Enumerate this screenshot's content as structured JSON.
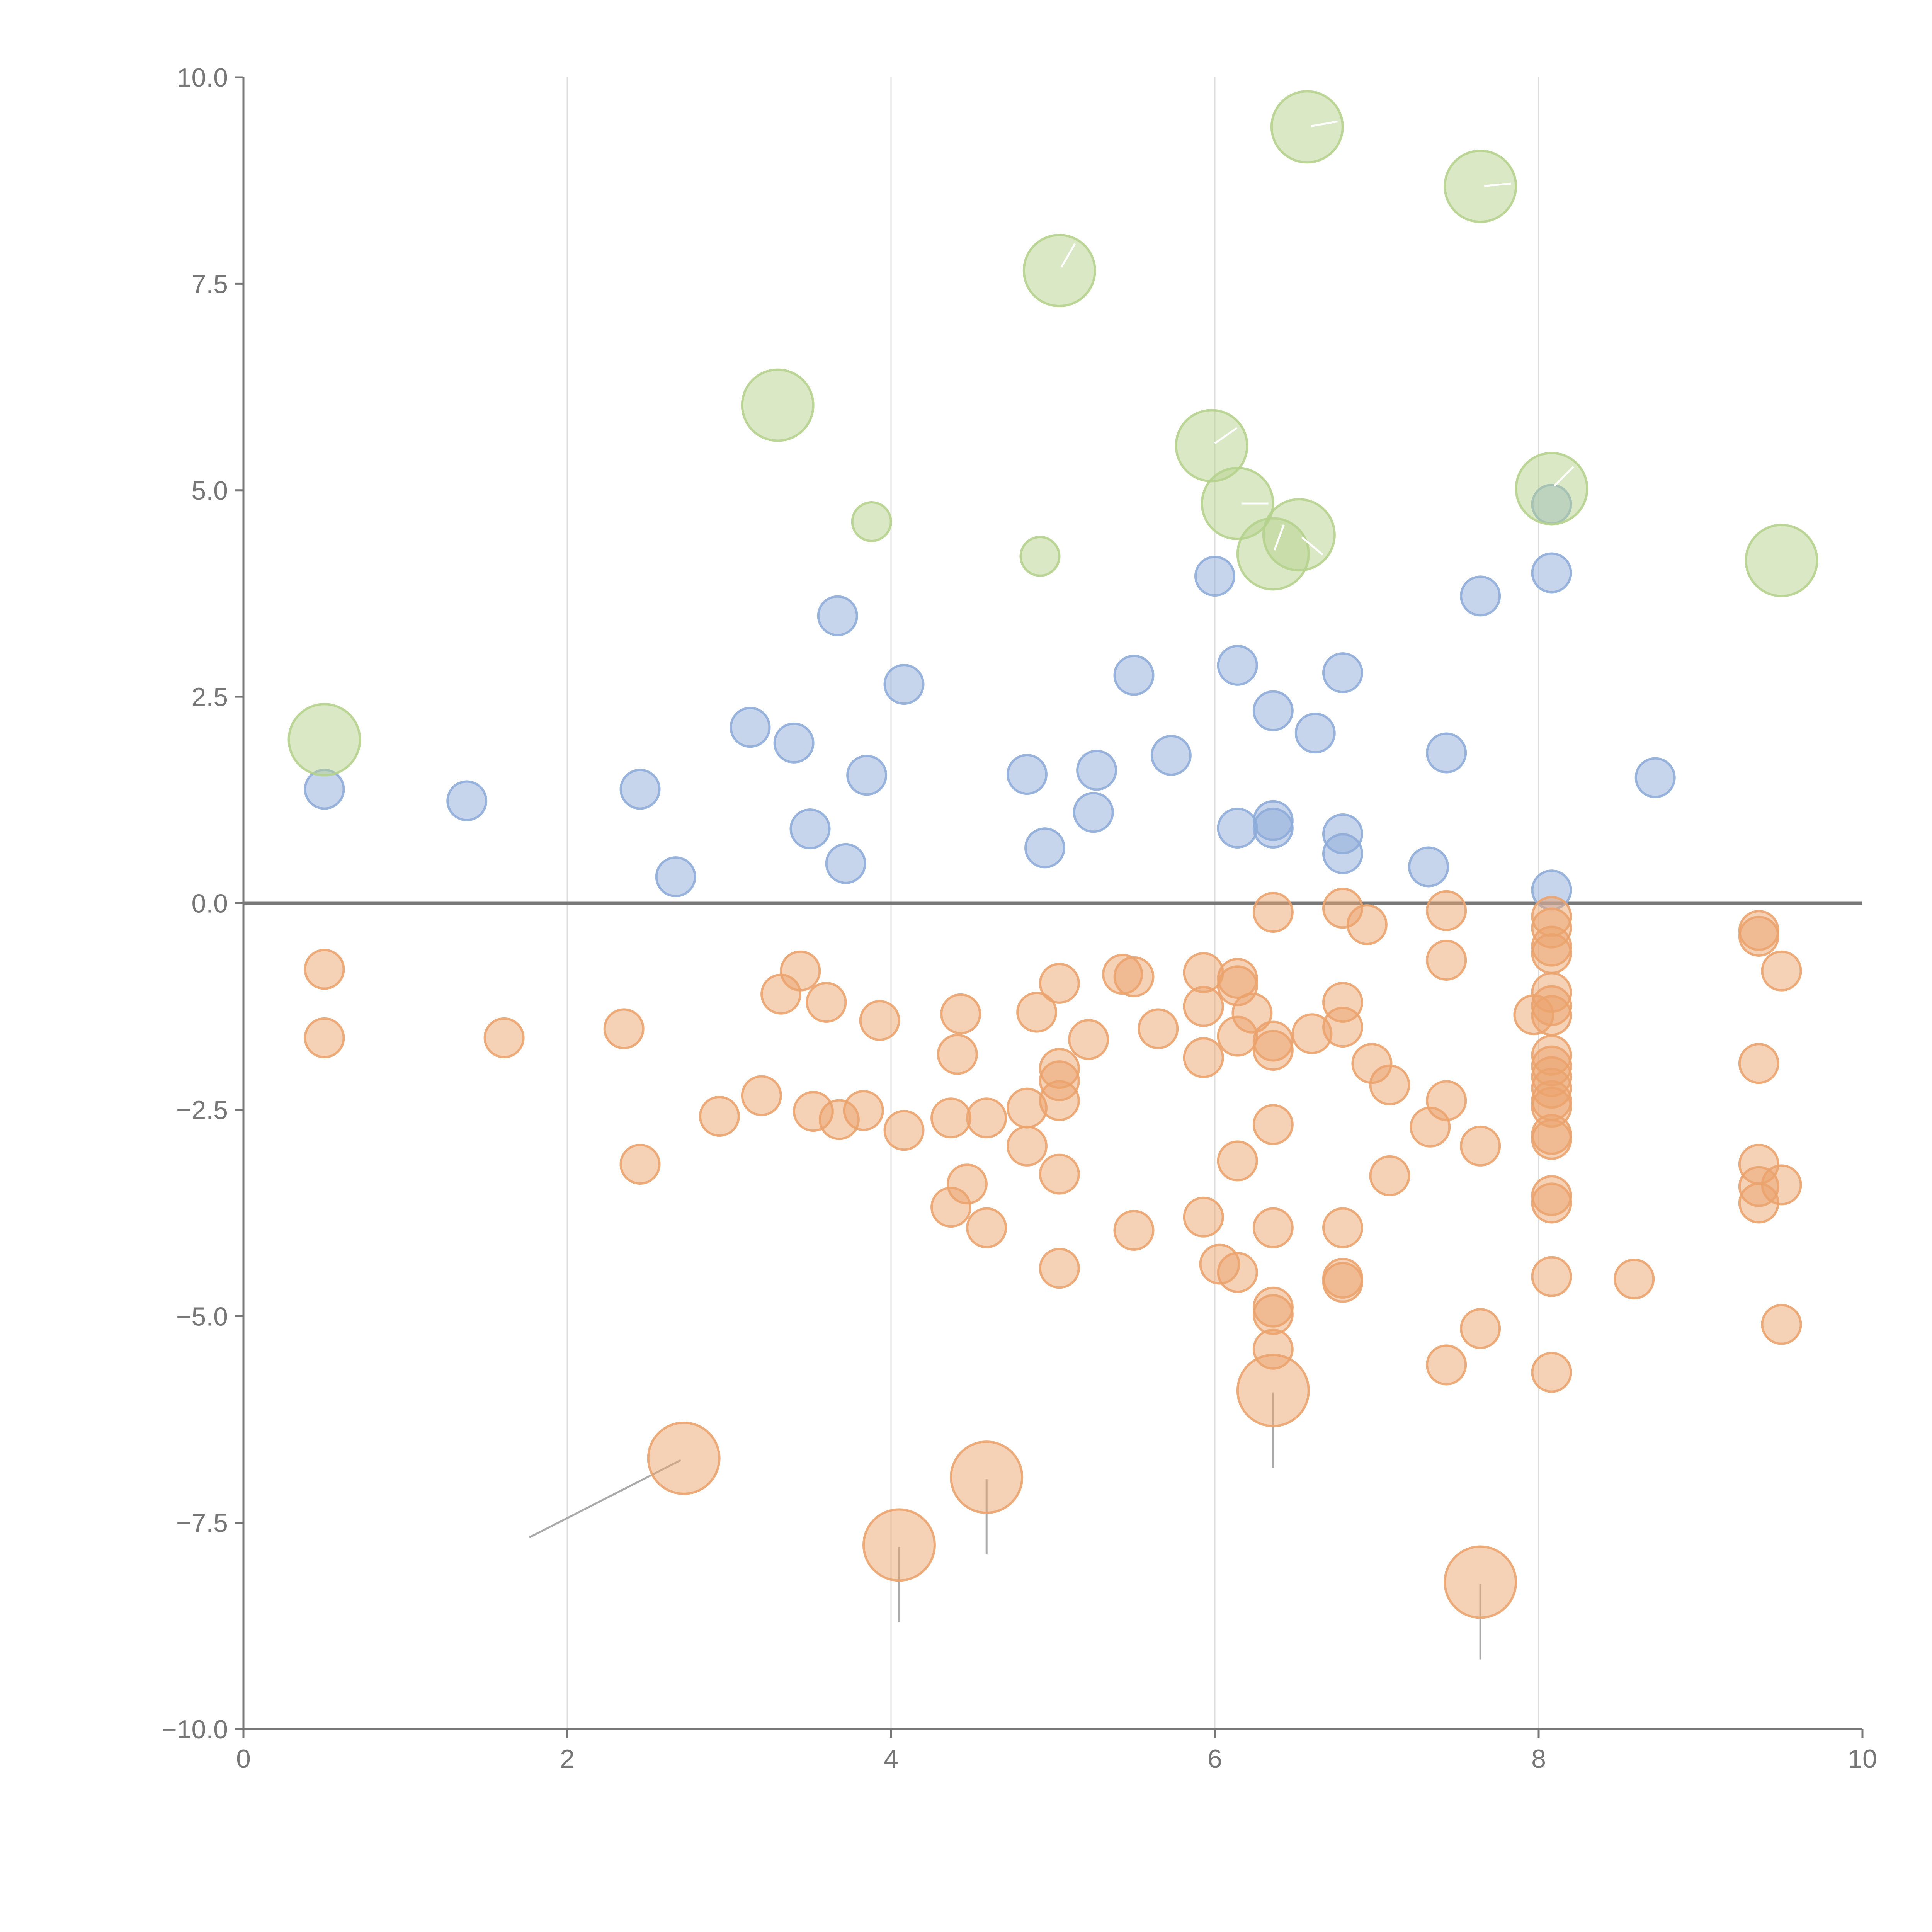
{
  "chart_data": {
    "type": "scatter",
    "title": "",
    "xlabel": "",
    "ylabel": "",
    "xlim": [
      0,
      10
    ],
    "ylim": [
      -10,
      10
    ],
    "grid": "vertical",
    "x_ticks": [
      "0",
      "2",
      "4",
      "6",
      "8",
      "10"
    ],
    "y_ticks": [
      "−10.0",
      "−7.5",
      "−5.0",
      "−2.5",
      "0.0",
      "2.5",
      "5.0",
      "7.5",
      "10.0"
    ],
    "colors": {
      "green": "#b5d28d",
      "blue": "#8eacd9",
      "orange": "#eba36e",
      "axis": "#777777",
      "grid": "#dddddd"
    },
    "series": [
      {
        "name": "blue",
        "color": "#8eacd9",
        "size": "small",
        "points": [
          [
            0.5,
            1.38
          ],
          [
            1.38,
            1.24
          ],
          [
            2.45,
            1.38
          ],
          [
            2.67,
            0.32
          ],
          [
            3.13,
            2.13
          ],
          [
            3.4,
            1.94
          ],
          [
            3.5,
            0.9
          ],
          [
            3.67,
            3.48
          ],
          [
            3.72,
            0.48
          ],
          [
            3.85,
            1.55
          ],
          [
            4.08,
            2.65
          ],
          [
            4.84,
            1.56
          ],
          [
            4.95,
            0.67
          ],
          [
            5.25,
            1.1
          ],
          [
            5.27,
            1.61
          ],
          [
            5.5,
            2.76
          ],
          [
            5.73,
            1.79
          ],
          [
            6.0,
            3.96
          ],
          [
            6.14,
            2.88
          ],
          [
            6.14,
            0.91
          ],
          [
            6.36,
            2.33
          ],
          [
            6.36,
            1.0
          ],
          [
            6.36,
            0.91
          ],
          [
            6.62,
            2.06
          ],
          [
            6.79,
            2.79
          ],
          [
            6.79,
            0.84
          ],
          [
            6.79,
            0.6
          ],
          [
            7.32,
            0.44
          ],
          [
            7.43,
            1.82
          ],
          [
            7.64,
            3.72
          ],
          [
            8.08,
            4.83
          ],
          [
            8.08,
            4.0
          ],
          [
            8.08,
            0.16
          ],
          [
            8.72,
            1.52
          ]
        ]
      },
      {
        "name": "orange",
        "color": "#eba36e",
        "size": "small",
        "points": [
          [
            0.5,
            -0.8
          ],
          [
            0.5,
            -1.63
          ],
          [
            1.61,
            -1.63
          ],
          [
            2.35,
            -1.52
          ],
          [
            2.45,
            -3.16
          ],
          [
            2.94,
            -2.58
          ],
          [
            3.2,
            -2.33
          ],
          [
            3.32,
            -1.1
          ],
          [
            3.44,
            -0.82
          ],
          [
            3.52,
            -2.52
          ],
          [
            3.6,
            -1.2
          ],
          [
            3.68,
            -2.62
          ],
          [
            3.83,
            -2.51
          ],
          [
            3.93,
            -1.42
          ],
          [
            4.08,
            -2.75
          ],
          [
            4.37,
            -2.6
          ],
          [
            4.37,
            -3.68
          ],
          [
            4.41,
            -1.83
          ],
          [
            4.43,
            -1.34
          ],
          [
            4.47,
            -3.4
          ],
          [
            4.59,
            -2.6
          ],
          [
            4.59,
            -3.93
          ],
          [
            4.84,
            -2.48
          ],
          [
            4.84,
            -2.94
          ],
          [
            4.9,
            -1.32
          ],
          [
            5.04,
            -2.0
          ],
          [
            5.04,
            -2.15
          ],
          [
            5.04,
            -2.39
          ],
          [
            5.04,
            -0.97
          ],
          [
            5.04,
            -3.28
          ],
          [
            5.04,
            -4.42
          ],
          [
            5.22,
            -1.65
          ],
          [
            5.43,
            -0.86
          ],
          [
            5.5,
            -0.89
          ],
          [
            5.5,
            -3.96
          ],
          [
            5.65,
            -1.52
          ],
          [
            5.93,
            -0.84
          ],
          [
            5.93,
            -1.25
          ],
          [
            5.93,
            -1.87
          ],
          [
            5.93,
            -3.8
          ],
          [
            6.03,
            -4.37
          ],
          [
            6.14,
            -0.91
          ],
          [
            6.14,
            -1.0
          ],
          [
            6.14,
            -1.61
          ],
          [
            6.14,
            -3.12
          ],
          [
            6.14,
            -4.47
          ],
          [
            6.23,
            -1.33
          ],
          [
            6.36,
            -0.11
          ],
          [
            6.36,
            -1.67
          ],
          [
            6.36,
            -1.78
          ],
          [
            6.36,
            -2.68
          ],
          [
            6.36,
            -3.93
          ],
          [
            6.36,
            -4.89
          ],
          [
            6.36,
            -4.98
          ],
          [
            6.36,
            -5.4
          ],
          [
            6.6,
            -1.58
          ],
          [
            6.79,
            -0.06
          ],
          [
            6.79,
            -1.2
          ],
          [
            6.79,
            -1.5
          ],
          [
            6.79,
            -3.93
          ],
          [
            6.79,
            -4.54
          ],
          [
            6.79,
            -4.59
          ],
          [
            6.94,
            -0.26
          ],
          [
            6.97,
            -1.94
          ],
          [
            7.08,
            -2.2
          ],
          [
            7.08,
            -3.3
          ],
          [
            7.33,
            -2.71
          ],
          [
            7.43,
            -0.09
          ],
          [
            7.43,
            -0.69
          ],
          [
            7.43,
            -2.39
          ],
          [
            7.43,
            -5.59
          ],
          [
            7.64,
            -2.94
          ],
          [
            7.64,
            -5.15
          ],
          [
            7.97,
            -1.35
          ],
          [
            8.08,
            -0.16
          ],
          [
            8.08,
            -0.3
          ],
          [
            8.08,
            -0.52
          ],
          [
            8.08,
            -0.61
          ],
          [
            8.08,
            -1.08
          ],
          [
            8.08,
            -1.24
          ],
          [
            8.08,
            -1.36
          ],
          [
            8.08,
            -1.84
          ],
          [
            8.08,
            -1.97
          ],
          [
            8.08,
            -2.1
          ],
          [
            8.08,
            -2.24
          ],
          [
            8.08,
            -2.39
          ],
          [
            8.08,
            -2.47
          ],
          [
            8.08,
            -2.8
          ],
          [
            8.08,
            -2.86
          ],
          [
            8.08,
            -3.54
          ],
          [
            8.08,
            -3.63
          ],
          [
            8.08,
            -4.52
          ],
          [
            8.08,
            -5.68
          ],
          [
            8.59,
            -4.55
          ],
          [
            9.36,
            -0.33
          ],
          [
            9.36,
            -0.4
          ],
          [
            9.36,
            -1.94
          ],
          [
            9.36,
            -3.16
          ],
          [
            9.36,
            -3.43
          ],
          [
            9.36,
            -3.63
          ],
          [
            9.5,
            -0.82
          ],
          [
            9.5,
            -3.41
          ],
          [
            9.5,
            -5.1
          ]
        ]
      },
      {
        "name": "orange-large",
        "color": "#eba36e",
        "size": "large",
        "points": [
          [
            2.72,
            -6.72
          ],
          [
            4.05,
            -7.77
          ],
          [
            4.59,
            -6.95
          ],
          [
            6.36,
            -5.9
          ],
          [
            7.64,
            -8.22
          ]
        ]
      },
      {
        "name": "green",
        "color": "#b5d28d",
        "size": "large",
        "points": [
          [
            0.5,
            1.98
          ],
          [
            3.3,
            6.03
          ],
          [
            5.04,
            7.66
          ],
          [
            5.98,
            5.54
          ],
          [
            6.14,
            4.84
          ],
          [
            6.36,
            4.23
          ],
          [
            6.52,
            4.46
          ],
          [
            6.57,
            9.4
          ],
          [
            7.64,
            8.68
          ],
          [
            8.08,
            5.02
          ],
          [
            9.5,
            4.15
          ]
        ]
      },
      {
        "name": "green-small",
        "color": "#b5d28d",
        "size": "small",
        "points": [
          [
            3.88,
            4.62
          ],
          [
            4.92,
            4.2
          ]
        ]
      }
    ]
  }
}
